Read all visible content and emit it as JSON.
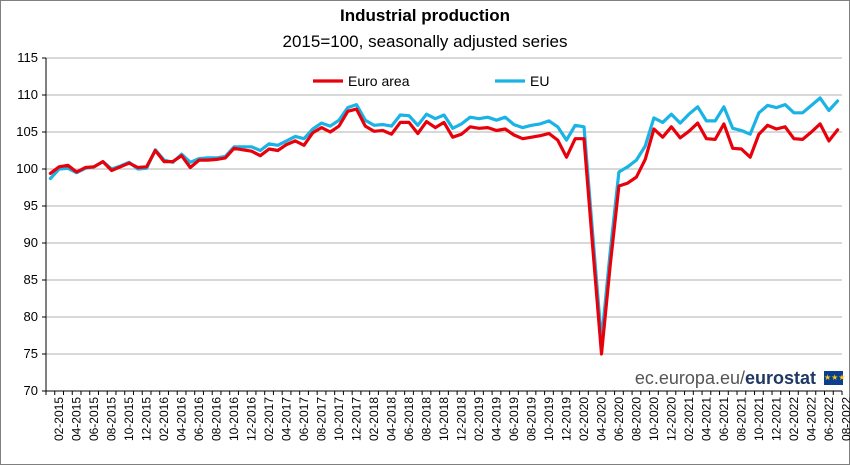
{
  "chart_data": {
    "type": "line",
    "title": "Industrial production",
    "subtitle": "2015=100, seasonally adjusted series",
    "ylim": [
      70,
      115
    ],
    "yticks": [
      70,
      75,
      80,
      85,
      90,
      95,
      100,
      105,
      110,
      115
    ],
    "grid": true,
    "legend_position": "top-center",
    "x_start": "01-2015",
    "xtick_labels": [
      "02-2015",
      "04-2015",
      "06-2015",
      "08-2015",
      "10-2015",
      "12-2015",
      "02-2016",
      "04-2016",
      "06-2016",
      "08-2016",
      "10-2016",
      "12-2016",
      "02-2017",
      "04-2017",
      "06-2017",
      "08-2017",
      "10-2017",
      "12-2017",
      "02-2018",
      "04-2018",
      "06-2018",
      "08-2018",
      "10-2018",
      "12-2018",
      "02-2019",
      "04-2019",
      "06-2019",
      "08-2019",
      "10-2019",
      "12-2019",
      "02-2020",
      "04-2020",
      "06-2020",
      "08-2020",
      "10-2020",
      "12-2020",
      "02-2021",
      "04-2021",
      "06-2021",
      "08-2021",
      "10-2021",
      "12-2021",
      "02-2022",
      "04-2022",
      "06-2022",
      "08-2022"
    ],
    "series": [
      {
        "name": "Euro area",
        "color": "#e8000b",
        "values": [
          99.4,
          100.3,
          100.5,
          99.6,
          100.2,
          100.3,
          101.0,
          99.8,
          100.3,
          100.8,
          100.2,
          100.3,
          102.5,
          101.0,
          101.0,
          101.8,
          100.2,
          101.2,
          101.2,
          101.3,
          101.5,
          102.8,
          102.6,
          102.4,
          101.8,
          102.7,
          102.5,
          103.3,
          103.8,
          103.2,
          104.9,
          105.6,
          105.0,
          105.8,
          107.8,
          108.1,
          105.8,
          105.1,
          105.2,
          104.7,
          106.3,
          106.3,
          104.8,
          106.4,
          105.6,
          106.3,
          104.3,
          104.7,
          105.7,
          105.5,
          105.6,
          105.2,
          105.4,
          104.6,
          104.1,
          104.3,
          104.5,
          104.8,
          103.9,
          101.6,
          104.1,
          104.1,
          89.5,
          75.0,
          87.0,
          97.7,
          98.1,
          98.9,
          101.3,
          105.4,
          104.3,
          105.7,
          104.2,
          105.1,
          106.2,
          104.1,
          104.0,
          106.1,
          102.8,
          102.7,
          101.6,
          104.7,
          105.9,
          105.4,
          105.7,
          104.1,
          104.0,
          105.0,
          106.1,
          103.8,
          105.3
        ]
      },
      {
        "name": "EU",
        "color": "#1ab3e6",
        "values": [
          98.7,
          100.0,
          100.1,
          99.5,
          100.1,
          100.3,
          101.0,
          100.0,
          100.4,
          100.9,
          100.0,
          100.1,
          102.6,
          101.2,
          100.9,
          102.0,
          100.9,
          101.4,
          101.5,
          101.5,
          101.7,
          103.0,
          103.0,
          103.0,
          102.5,
          103.4,
          103.2,
          103.8,
          104.4,
          104.1,
          105.4,
          106.2,
          105.8,
          106.6,
          108.3,
          108.7,
          106.6,
          105.9,
          106.0,
          105.8,
          107.3,
          107.2,
          105.9,
          107.4,
          106.8,
          107.3,
          105.5,
          106.1,
          107.0,
          106.8,
          107.0,
          106.6,
          107.0,
          106.0,
          105.6,
          105.9,
          106.1,
          106.5,
          105.7,
          103.9,
          105.9,
          105.7,
          91.2,
          76.8,
          88.8,
          99.6,
          100.3,
          101.2,
          103.1,
          106.9,
          106.3,
          107.4,
          106.2,
          107.4,
          108.4,
          106.5,
          106.5,
          108.4,
          105.5,
          105.2,
          104.7,
          107.6,
          108.6,
          108.3,
          108.7,
          107.6,
          107.6,
          108.6,
          109.6,
          107.9,
          109.2
        ]
      }
    ]
  },
  "branding": {
    "domain": "ec.europa.eu/",
    "name": "eurostat"
  }
}
